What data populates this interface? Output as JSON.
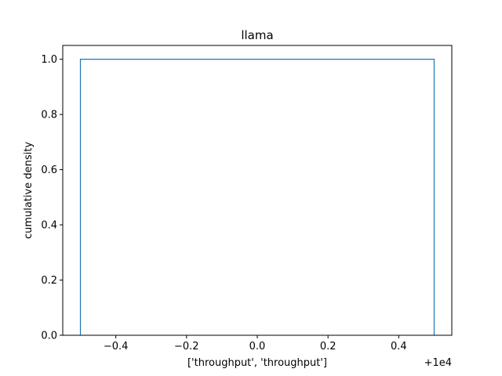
{
  "chart_data": {
    "type": "line",
    "title": "llama",
    "xlabel": "['throughput', 'throughput']",
    "ylabel": "cumulative density",
    "x_offset_label": "+1e4",
    "xlim": [
      -0.55,
      0.55
    ],
    "ylim": [
      0,
      1.05
    ],
    "x_ticks": [
      -0.4,
      -0.2,
      0.0,
      0.2,
      0.4
    ],
    "x_tick_labels": [
      "−0.4",
      "−0.2",
      "0.0",
      "0.2",
      "0.4"
    ],
    "y_ticks": [
      0.0,
      0.2,
      0.4,
      0.6,
      0.8,
      1.0
    ],
    "y_tick_labels": [
      "0.0",
      "0.2",
      "0.4",
      "0.6",
      "0.8",
      "1.0"
    ],
    "grid": false,
    "series": [
      {
        "x": [
          -0.5,
          -0.5,
          0.5,
          0.5
        ],
        "y": [
          0,
          1,
          1,
          0
        ],
        "color": "#1f77b4"
      }
    ]
  }
}
